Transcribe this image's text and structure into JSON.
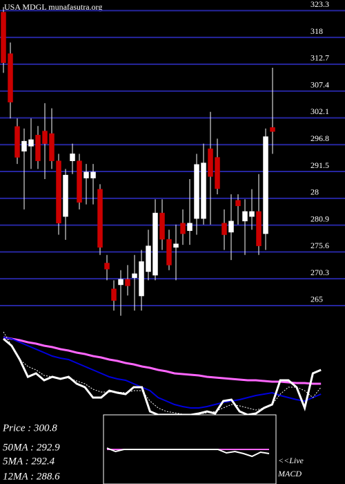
{
  "chart_data": [
    {
      "type": "candlestick",
      "title": "USA MDGL munafasutra.org",
      "ylim": [
        263.9,
        325.4
      ],
      "yticks": [
        323.3,
        318,
        312.7,
        307.4,
        302.1,
        296.8,
        291.5,
        {
          "value": 286.2,
          "label": "28"
        },
        280.9,
        275.6,
        270.3,
        265
      ],
      "grid": true,
      "grid_color": "#2626a0",
      "up_color": "#ffffff",
      "down_color": "#cc0000",
      "wick_color": "#ffffff",
      "open": [
        323,
        314.8,
        300.4,
        295.5,
        296.5,
        298.7,
        299.5,
        299,
        293.6,
        282.6,
        293.6,
        293.6,
        290.2,
        290.2,
        288,
        273.4,
        268.3,
        269.1,
        270.2,
        270.5,
        266.9,
        271.7,
        271,
        283.3,
        278.1,
        276.5,
        281.3,
        279.8,
        282.2,
        282.2,
        296,
        294.3,
        281.3,
        279.5,
        285.8,
        281.7,
        282.6,
        283.6,
        279.2,
        300.2
      ],
      "high": [
        324,
        317,
        302,
        300,
        302,
        300.5,
        305,
        304,
        295,
        292,
        297,
        295,
        293,
        293,
        289,
        275,
        270,
        272,
        273,
        275,
        276,
        280,
        286,
        286,
        280,
        281,
        284,
        290,
        295,
        297,
        303.3,
        298,
        284,
        287,
        287,
        286,
        288,
        291,
        300,
        312
      ],
      "low": [
        311,
        302,
        293,
        284,
        292,
        292,
        290,
        292,
        279,
        278,
        291,
        284,
        285,
        285,
        275,
        270,
        264,
        263,
        267,
        264,
        264,
        270,
        270,
        276,
        272,
        270,
        277,
        277,
        279,
        281,
        281,
        287,
        276,
        274,
        281,
        275,
        280,
        275,
        276,
        295
      ],
      "close": [
        313,
        305.2,
        294.3,
        297.5,
        297.8,
        293.6,
        297,
        293.6,
        281.3,
        290.8,
        295,
        285.4,
        291.4,
        291.4,
        276.5,
        272.2,
        266,
        270.2,
        268.9,
        271.3,
        273.7,
        276.8,
        283.3,
        278.1,
        273,
        277.2,
        279.2,
        281.3,
        292.9,
        293.2,
        290.5,
        288.1,
        279,
        281.7,
        284.7,
        283.6,
        283.6,
        276.8,
        298.4,
        299.4
      ]
    },
    {
      "type": "line",
      "ylim": [
        0,
        130
      ],
      "series": [
        {
          "color": "#ff66ff",
          "width": 3,
          "values": [
            117,
            115,
            113,
            110,
            108,
            105,
            103,
            100,
            98,
            95,
            93,
            90,
            88,
            85,
            83,
            80,
            78,
            75,
            73,
            70,
            68,
            65,
            64,
            63,
            62,
            60,
            59,
            58,
            57,
            56,
            55,
            55,
            54,
            53,
            53,
            52,
            51,
            51,
            50,
            50
          ]
        },
        {
          "color": "#0000dd",
          "width": 2,
          "values": [
            117,
            115,
            110,
            105,
            100,
            95,
            90,
            87,
            85,
            80,
            75,
            70,
            65,
            60,
            57,
            55,
            50,
            45,
            40,
            30,
            25,
            20,
            17,
            15,
            15,
            17,
            20,
            23,
            25,
            27,
            30,
            33,
            35,
            37,
            33,
            30,
            27,
            25,
            30,
            35
          ]
        },
        {
          "color": "#ffffff",
          "width": 1,
          "dash": true,
          "values": [
            125,
            105,
            85,
            75,
            70,
            62,
            60,
            58,
            58,
            54,
            50,
            42,
            38,
            38,
            38,
            37,
            40,
            40,
            25,
            15,
            10,
            8,
            6,
            5,
            6,
            8,
            10,
            15,
            20,
            18,
            15,
            12,
            15,
            20,
            35,
            45,
            45,
            40,
            30,
            45
          ]
        },
        {
          "color": "#ffffff",
          "width": 3,
          "values": [
            115,
            105,
            85,
            60,
            65,
            55,
            60,
            57,
            60,
            50,
            45,
            30,
            30,
            40,
            37,
            35,
            45,
            45,
            10,
            5,
            5,
            5,
            5,
            5,
            7,
            10,
            7,
            25,
            27,
            10,
            5,
            7,
            15,
            20,
            55,
            55,
            45,
            15,
            65,
            70
          ]
        }
      ]
    },
    {
      "type": "macd",
      "label": "<<Live",
      "title": "MACD",
      "ylim": [
        0,
        100
      ],
      "series": [
        {
          "color": "#ff66ff",
          "values": [
            50,
            50,
            50,
            50,
            50,
            50,
            50,
            50,
            50,
            50,
            50,
            50,
            50,
            50,
            50,
            50,
            50,
            50,
            50,
            50
          ]
        },
        {
          "color": "#ffffff",
          "values": [
            52,
            47,
            50,
            50,
            50,
            50,
            50,
            50,
            50,
            50,
            50,
            50,
            50,
            50,
            45,
            47,
            44,
            40,
            46,
            44
          ]
        }
      ]
    }
  ],
  "info": [
    "Price : 300.8",
    "50MA : 292.9",
    "5MA : 292.4",
    "12MA : 288.6"
  ]
}
